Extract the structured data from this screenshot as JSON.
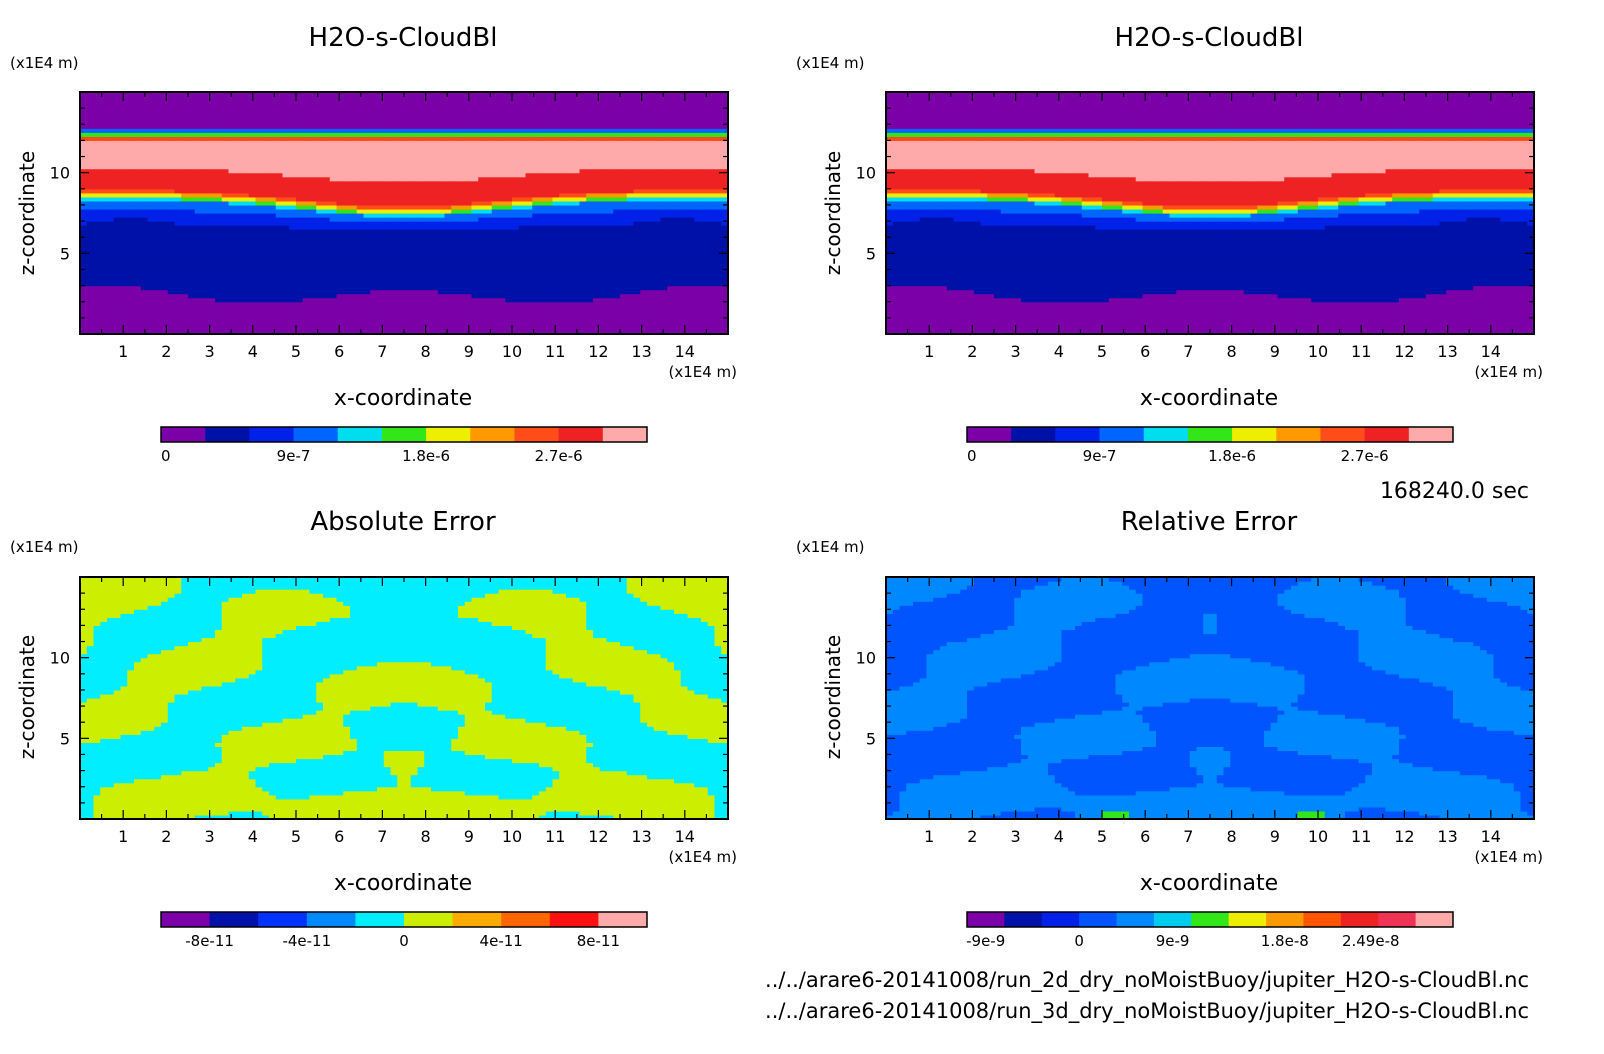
{
  "panels": [
    {
      "title": "H2O-s-CloudBl",
      "y_unit": "(x1E4 m)",
      "x_unit": "(x1E4 m)",
      "xlabel": "x-coordinate",
      "ylabel": "z-coordinate",
      "field": "cloud",
      "colorbar": {
        "colors": [
          "#7b00a8",
          "#0011a8",
          "#0022e8",
          "#0066ff",
          "#00ddee",
          "#33e61a",
          "#eeee00",
          "#ff9900",
          "#ff4d1a",
          "#ee2222",
          "#ffaaaa"
        ],
        "labels": [
          "0",
          "9e-7",
          "1.8e-6",
          "2.7e-6"
        ],
        "label_at": [
          0,
          3,
          6,
          9
        ]
      }
    },
    {
      "title": "H2O-s-CloudBl",
      "y_unit": "(x1E4 m)",
      "x_unit": "(x1E4 m)",
      "xlabel": "x-coordinate",
      "ylabel": "z-coordinate",
      "field": "cloud",
      "colorbar": {
        "colors": [
          "#7b00a8",
          "#0011a8",
          "#0022e8",
          "#0066ff",
          "#00ddee",
          "#33e61a",
          "#eeee00",
          "#ff9900",
          "#ff4d1a",
          "#ee2222",
          "#ffaaaa"
        ],
        "labels": [
          "0",
          "9e-7",
          "1.8e-6",
          "2.7e-6"
        ],
        "label_at": [
          0,
          3,
          6,
          9
        ]
      }
    },
    {
      "title": "Absolute Error",
      "y_unit": "(x1E4 m)",
      "x_unit": "(x1E4 m)",
      "xlabel": "x-coordinate",
      "ylabel": "z-coordinate",
      "field": "abs",
      "colorbar": {
        "colors": [
          "#7b00a8",
          "#0011a8",
          "#0033ff",
          "#0088ff",
          "#00eeff",
          "#ccee00",
          "#ffaa00",
          "#ff6600",
          "#ff1111",
          "#ffaaaa"
        ],
        "labels": [
          "-8e-11",
          "-4e-11",
          "0",
          "4e-11",
          "8e-11"
        ],
        "label_at": [
          1,
          3,
          5,
          7,
          9
        ]
      }
    },
    {
      "title": "Relative Error",
      "y_unit": "(x1E4 m)",
      "x_unit": "(x1E4 m)",
      "xlabel": "x-coordinate",
      "ylabel": "z-coordinate",
      "field": "rel",
      "colorbar": {
        "colors": [
          "#7b00a8",
          "#0011a8",
          "#0022e8",
          "#0055ff",
          "#0088ff",
          "#00ccee",
          "#33e61a",
          "#eeee00",
          "#ff9900",
          "#ff5500",
          "#ee2222",
          "#ee3355",
          "#ffaaaa"
        ],
        "labels": [
          "-9e-9",
          "0",
          "9e-9",
          "1.8e-8",
          "2.49e-8"
        ],
        "label_at": [
          0.5,
          3,
          5.5,
          8.5,
          10.8
        ]
      }
    }
  ],
  "time_label": "168240.0 sec",
  "file_lines": [
    "../../arare6-20141008/run_2d_dry_noMoistBuoy/jupiter_H2O-s-CloudBl.nc",
    "../../arare6-20141008/run_3d_dry_noMoistBuoy/jupiter_H2O-s-CloudBl.nc"
  ],
  "chart_data": [
    {
      "type": "heatmap",
      "title": "H2O-s-CloudBl",
      "xlabel": "x-coordinate",
      "ylabel": "z-coordinate",
      "x_unit": "(x1E4 m)",
      "y_unit": "(x1E4 m)",
      "xlim": [
        0,
        15
      ],
      "ylim": [
        0,
        15
      ],
      "xticks": [
        1,
        2,
        3,
        4,
        5,
        6,
        7,
        8,
        9,
        10,
        11,
        12,
        13,
        14
      ],
      "yticks": [
        5,
        10
      ],
      "levels": [
        0,
        3e-07,
        6e-07,
        9e-07,
        1.2e-06,
        1.5e-06,
        1.8e-06,
        2.1e-06,
        2.4e-06,
        2.7e-06,
        3e-06,
        3.3e-06
      ],
      "vertical_profile_at_x_7.5": [
        {
          "z": 1,
          "value": 0
        },
        {
          "z": 4,
          "value": 4e-07
        },
        {
          "z": 6.5,
          "value": 6e-07
        },
        {
          "z": 8,
          "value": 1e-06
        },
        {
          "z": 9,
          "value": 3e-06
        },
        {
          "z": 11,
          "value": 3.2e-06
        },
        {
          "z": 12.8,
          "value": 1.5e-06
        },
        {
          "z": 14,
          "value": 0
        }
      ]
    },
    {
      "type": "heatmap",
      "title": "H2O-s-CloudBl",
      "xlabel": "x-coordinate",
      "ylabel": "z-coordinate",
      "x_unit": "(x1E4 m)",
      "y_unit": "(x1E4 m)",
      "xlim": [
        0,
        15
      ],
      "ylim": [
        0,
        15
      ],
      "xticks": [
        1,
        2,
        3,
        4,
        5,
        6,
        7,
        8,
        9,
        10,
        11,
        12,
        13,
        14
      ],
      "yticks": [
        5,
        10
      ],
      "levels": [
        0,
        3e-07,
        6e-07,
        9e-07,
        1.2e-06,
        1.5e-06,
        1.8e-06,
        2.1e-06,
        2.4e-06,
        2.7e-06,
        3e-06,
        3.3e-06
      ],
      "vertical_profile_at_x_7.5": [
        {
          "z": 1,
          "value": 0
        },
        {
          "z": 4,
          "value": 4e-07
        },
        {
          "z": 6.5,
          "value": 6e-07
        },
        {
          "z": 8,
          "value": 1e-06
        },
        {
          "z": 9,
          "value": 3e-06
        },
        {
          "z": 11,
          "value": 3.2e-06
        },
        {
          "z": 12.8,
          "value": 1.5e-06
        },
        {
          "z": 14,
          "value": 0
        }
      ]
    },
    {
      "type": "heatmap",
      "title": "Absolute Error",
      "xlabel": "x-coordinate",
      "ylabel": "z-coordinate",
      "x_unit": "(x1E4 m)",
      "y_unit": "(x1E4 m)",
      "xlim": [
        0,
        15
      ],
      "ylim": [
        0,
        15
      ],
      "xticks": [
        1,
        2,
        3,
        4,
        5,
        6,
        7,
        8,
        9,
        10,
        11,
        12,
        13,
        14
      ],
      "yticks": [
        5,
        10
      ],
      "levels": [
        -1e-10,
        -8e-11,
        -6e-11,
        -4e-11,
        -2e-11,
        0,
        2e-11,
        4e-11,
        6e-11,
        8e-11,
        1e-10
      ],
      "value_range_shown": [
        -2e-11,
        2e-11
      ]
    },
    {
      "type": "heatmap",
      "title": "Relative Error",
      "xlabel": "x-coordinate",
      "ylabel": "z-coordinate",
      "x_unit": "(x1E4 m)",
      "y_unit": "(x1E4 m)",
      "xlim": [
        0,
        15
      ],
      "ylim": [
        0,
        15
      ],
      "xticks": [
        1,
        2,
        3,
        4,
        5,
        6,
        7,
        8,
        9,
        10,
        11,
        12,
        13,
        14
      ],
      "yticks": [
        5,
        10
      ],
      "levels": [
        -9e-09,
        0,
        9e-09,
        1.8e-08,
        2.49e-08
      ],
      "value_range_shown": [
        -4e-09,
        4e-09
      ]
    }
  ]
}
